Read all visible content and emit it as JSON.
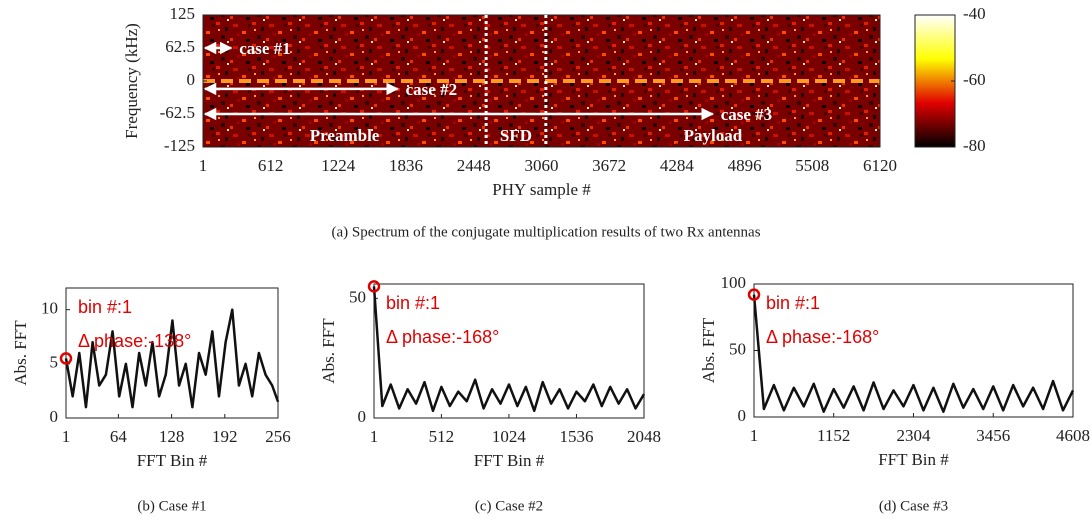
{
  "chart_data": [
    {
      "type": "heatmap",
      "caption": "(a) Spectrum of the conjugate multiplication results of two Rx antennas",
      "xlabel": "PHY sample #",
      "ylabel": "Frequency (kHz)",
      "xlim": [
        1,
        6120
      ],
      "xticks": [
        1,
        612,
        1224,
        1836,
        2448,
        3060,
        3672,
        4284,
        4896,
        5508,
        6120
      ],
      "ylim": [
        -125,
        125
      ],
      "yticks": [
        125,
        62.5,
        0,
        -62.5,
        -125
      ],
      "colormap": "hot",
      "clim": [
        -80,
        -40
      ],
      "cticks": [
        -40,
        -60,
        -80
      ],
      "boundaries": [
        2560,
        3100
      ],
      "regions": [
        "Preamble",
        "SFD",
        "Payload"
      ],
      "arrows": [
        {
          "label": "case #1",
          "x": [
            1,
            256
          ],
          "y": 62.5
        },
        {
          "label": "case #2",
          "x": [
            1,
            1760
          ],
          "y": -15
        },
        {
          "label": "case #3",
          "x": [
            1,
            4608
          ],
          "y": -62.5
        }
      ]
    },
    {
      "type": "line",
      "caption": "(b) Case #1",
      "xlabel": "FFT Bin #",
      "ylabel": "Abs. FFT",
      "color": "#111111",
      "annotations": [
        "bin #:1",
        "Δ phase:-138°"
      ],
      "xlim": [
        1,
        256
      ],
      "xticks": [
        1,
        64,
        128,
        192,
        256
      ],
      "ylim": [
        0,
        12
      ],
      "yticks": [
        0,
        5,
        10
      ],
      "x": [
        1,
        9,
        17,
        25,
        33,
        41,
        49,
        57,
        65,
        73,
        81,
        89,
        97,
        105,
        113,
        121,
        129,
        137,
        145,
        153,
        161,
        169,
        177,
        185,
        193,
        201,
        209,
        217,
        225,
        233,
        241,
        249,
        256
      ],
      "values": [
        5.5,
        2,
        6,
        1,
        7,
        3,
        4,
        8,
        2,
        5,
        1,
        6,
        3,
        7,
        2,
        4,
        9,
        3,
        5,
        1,
        6,
        4,
        8,
        2,
        7,
        10,
        3,
        5,
        2,
        6,
        4,
        3,
        1.5
      ]
    },
    {
      "type": "line",
      "caption": "(c) Case #2",
      "xlabel": "FFT Bin #",
      "ylabel": "Abs. FFT",
      "color": "#111111",
      "annotations": [
        "bin #:1",
        "Δ phase:-168°"
      ],
      "xlim": [
        1,
        2048
      ],
      "xticks": [
        1,
        512,
        1024,
        1536,
        2048
      ],
      "ylim": [
        0,
        56
      ],
      "yticks": [
        0,
        50
      ],
      "x": [
        1,
        64,
        128,
        192,
        256,
        320,
        384,
        448,
        512,
        576,
        640,
        704,
        768,
        832,
        896,
        960,
        1024,
        1088,
        1152,
        1216,
        1280,
        1344,
        1408,
        1472,
        1536,
        1600,
        1664,
        1728,
        1792,
        1856,
        1920,
        1984,
        2048
      ],
      "values": [
        55,
        5,
        14,
        4,
        12,
        6,
        15,
        3,
        13,
        5,
        11,
        7,
        16,
        4,
        12,
        6,
        14,
        5,
        13,
        3,
        15,
        6,
        12,
        4,
        11,
        7,
        14,
        5,
        13,
        6,
        12,
        4,
        10
      ]
    },
    {
      "type": "line",
      "caption": "(d) Case #3",
      "xlabel": "FFT Bin #",
      "ylabel": "Abs. FFT",
      "color": "#111111",
      "annotations": [
        "bin #:1",
        "Δ phase:-168°"
      ],
      "xlim": [
        1,
        4608
      ],
      "xticks": [
        1,
        1152,
        2304,
        3456,
        4608
      ],
      "ylim": [
        0,
        100
      ],
      "yticks": [
        0,
        50,
        100
      ],
      "x": [
        1,
        144,
        288,
        432,
        576,
        720,
        864,
        1008,
        1152,
        1296,
        1440,
        1584,
        1728,
        1872,
        2016,
        2160,
        2304,
        2448,
        2592,
        2736,
        2880,
        3024,
        3168,
        3312,
        3456,
        3600,
        3744,
        3888,
        4032,
        4176,
        4320,
        4464,
        4608
      ],
      "values": [
        92,
        6,
        24,
        5,
        22,
        8,
        25,
        4,
        21,
        7,
        23,
        5,
        26,
        6,
        20,
        8,
        24,
        5,
        22,
        4,
        25,
        7,
        21,
        6,
        23,
        5,
        24,
        8,
        22,
        6,
        27,
        5,
        20
      ]
    }
  ]
}
